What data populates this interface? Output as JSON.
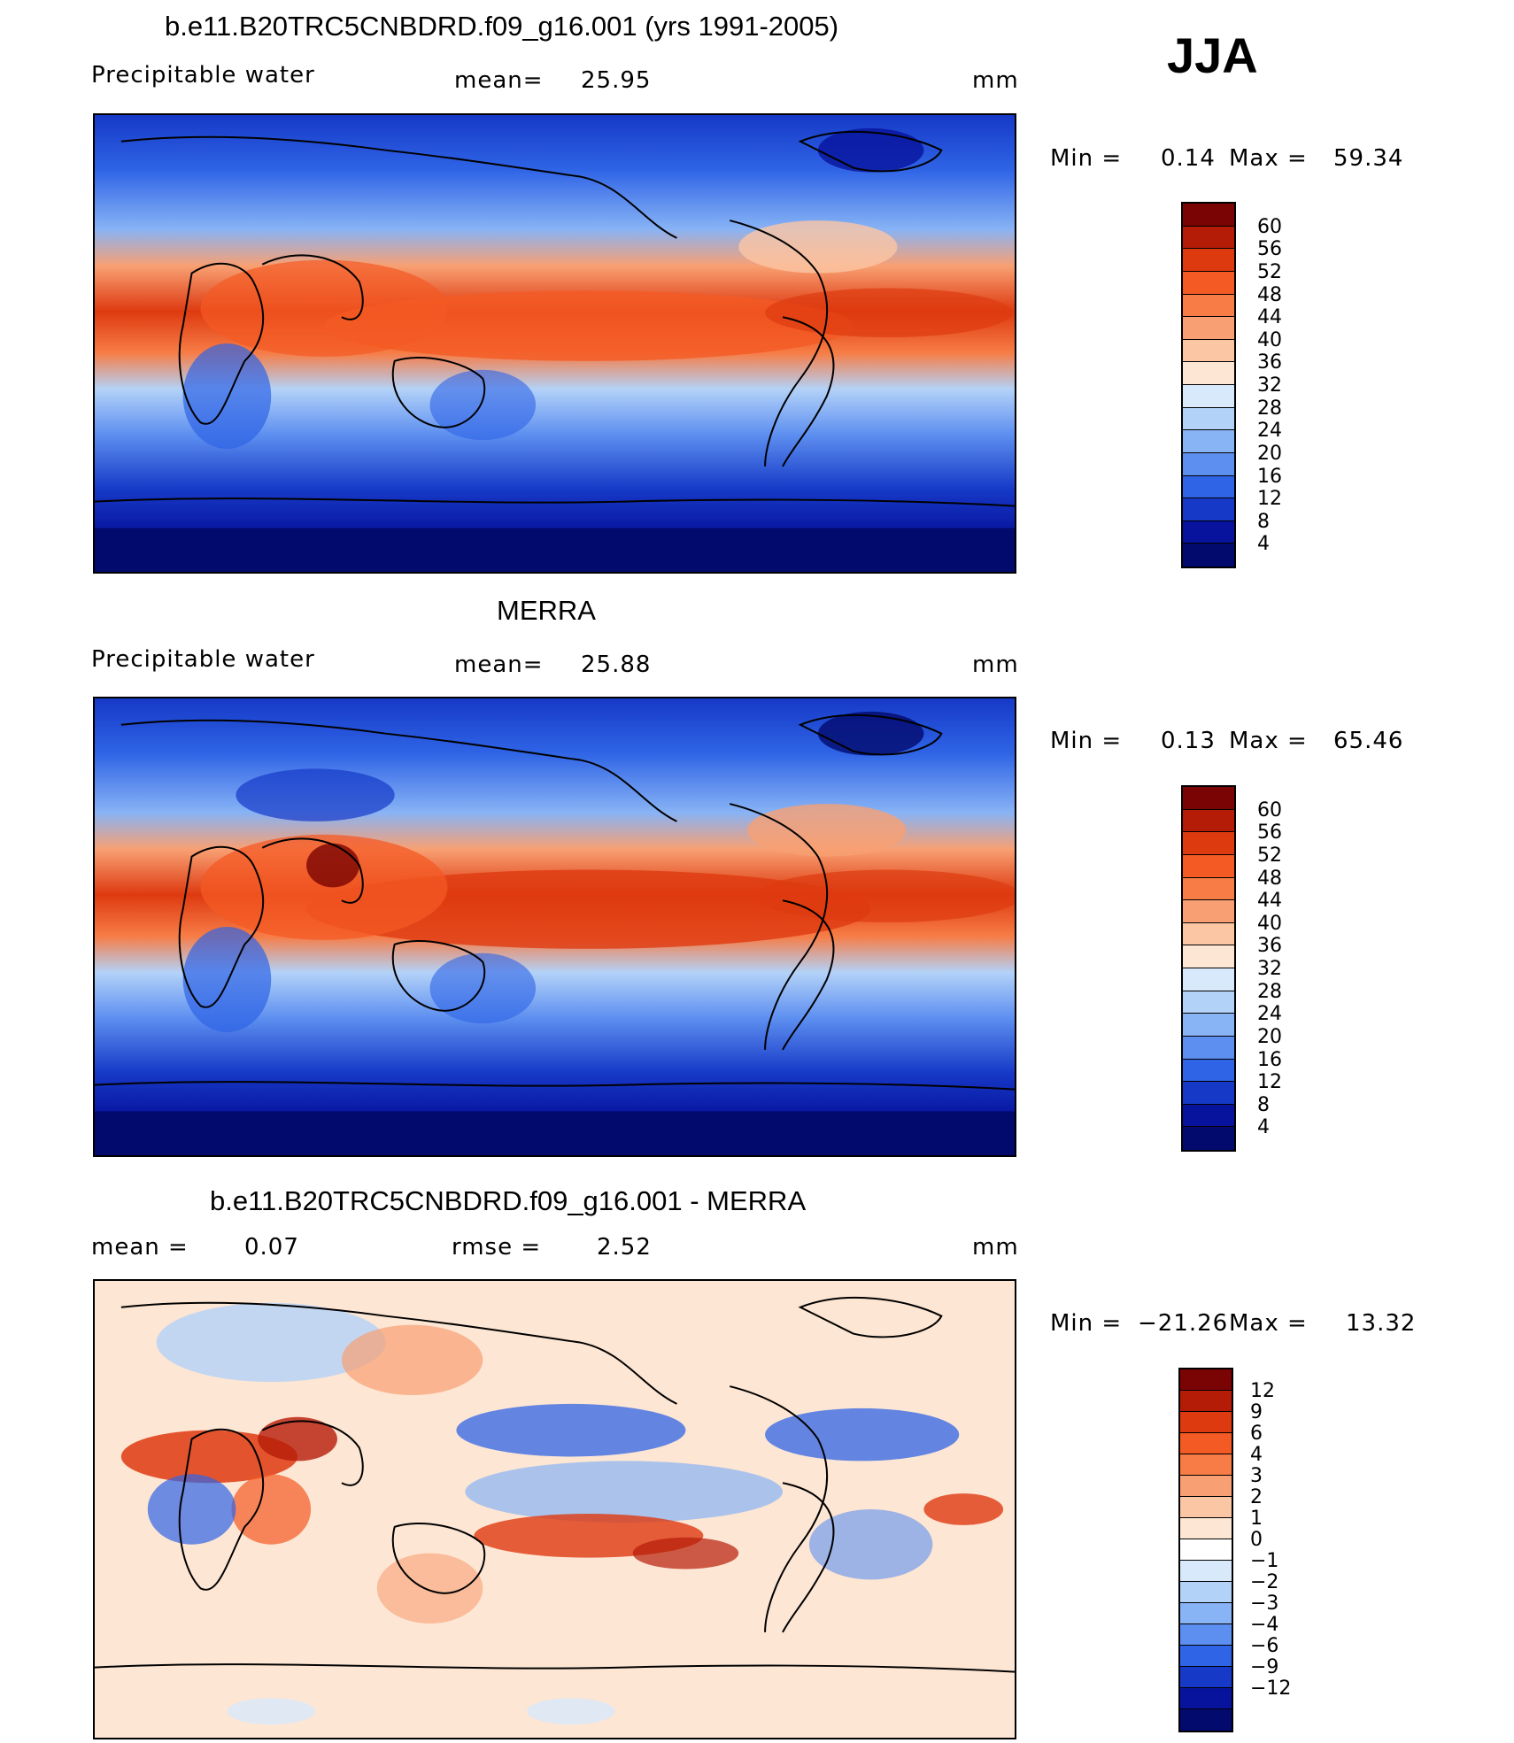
{
  "season": "JJA",
  "panels": [
    {
      "title": "b.e11.B20TRC5CNBDRD.f09_g16.001 (yrs 1991-2005)",
      "left_label": "Precipitable  water",
      "mid_label": "mean=",
      "mid_value": "25.95",
      "units": "mm",
      "min_label": "Min  =",
      "min_value": "0.14",
      "max_label": "Max  =",
      "max_value": "59.34",
      "colorbar_labels": [
        "60",
        "56",
        "52",
        "48",
        "44",
        "40",
        "36",
        "32",
        "28",
        "24",
        "20",
        "16",
        "12",
        "8",
        "4"
      ]
    },
    {
      "title": "MERRA",
      "left_label": "Precipitable  water",
      "mid_label": "mean=",
      "mid_value": "25.88",
      "units": "mm",
      "min_label": "Min  =",
      "min_value": "0.13",
      "max_label": "Max  =",
      "max_value": "65.46",
      "colorbar_labels": [
        "60",
        "56",
        "52",
        "48",
        "44",
        "40",
        "36",
        "32",
        "28",
        "24",
        "20",
        "16",
        "12",
        "8",
        "4"
      ]
    },
    {
      "title": "b.e11.B20TRC5CNBDRD.f09_g16.001 - MERRA",
      "left_label": "mean  =",
      "left_value": "0.07",
      "mid_label": "rmse  =",
      "mid_value": "2.52",
      "units": "mm",
      "min_label": "Min  =",
      "min_value": "−21.26",
      "max_label": "Max  =",
      "max_value": "13.32",
      "colorbar_labels": [
        "12",
        "9",
        "6",
        "4",
        "3",
        "2",
        "1",
        "0",
        "−1",
        "−2",
        "−3",
        "−4",
        "−6",
        "−9",
        "−12"
      ]
    }
  ],
  "colors": {
    "abs_scale": [
      "#7a0403",
      "#b51c08",
      "#de3a10",
      "#f45a24",
      "#f77c45",
      "#f8a073",
      "#fbc6a4",
      "#fde6d4",
      "#d8e9fb",
      "#b3d2f8",
      "#88b3f5",
      "#5d8ff0",
      "#2f64e6",
      "#1639c7",
      "#07139c",
      "#020a6e"
    ],
    "diff_scale": [
      "#7a0403",
      "#b51c08",
      "#de3a10",
      "#f45a24",
      "#f77c45",
      "#f8a073",
      "#fbc6a4",
      "#fde6d4",
      "#ffffff",
      "#d8e9fb",
      "#b3d2f8",
      "#88b3f5",
      "#5d8ff0",
      "#2f64e6",
      "#1639c7",
      "#07139c",
      "#020a6e"
    ]
  }
}
